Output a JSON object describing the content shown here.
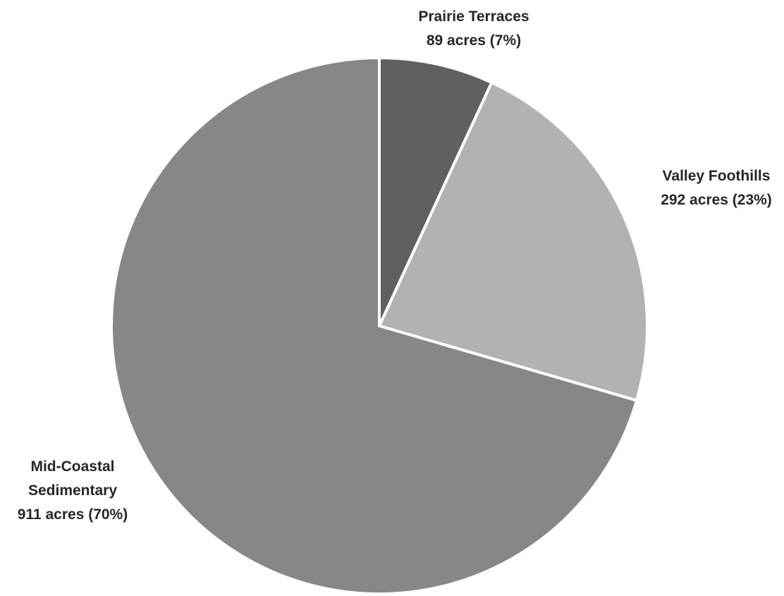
{
  "chart_data": {
    "type": "pie",
    "title": "",
    "start_angle_deg": 0,
    "direction": "clockwise",
    "slices": [
      {
        "name": "Prairie Terraces",
        "value": 89,
        "percent": 7,
        "label_lines": [
          "Prairie Terraces",
          "89 acres (7%)"
        ],
        "color": "#606060"
      },
      {
        "name": "Valley Foothills",
        "value": 292,
        "percent": 23,
        "label_lines": [
          "Valley Foothills",
          "292 acres (23%)"
        ],
        "color": "#b2b2b2"
      },
      {
        "name": "Mid-Coastal Sedimentary",
        "value": 911,
        "percent": 70,
        "label_lines": [
          "Mid-Coastal",
          "Sedimentary",
          "911 acres (70%)"
        ],
        "color": "#878787"
      }
    ]
  }
}
